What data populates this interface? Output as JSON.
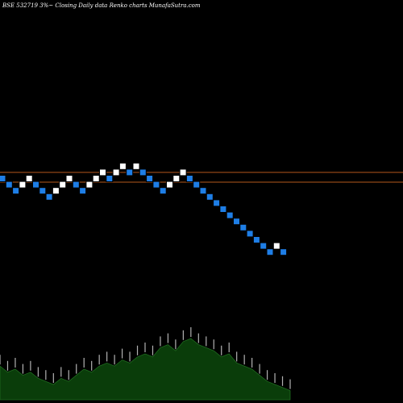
{
  "chart_data": {
    "type": "renko",
    "caption": "BSE 532719 3%~  Closing Daily data  Renko  charts MunafaSutra.com",
    "lines": [
      {
        "color": "#b5571c",
        "y": 1.0
      },
      {
        "color": "#b5571c",
        "y": -0.6
      }
    ],
    "bricks": [
      {
        "x": 0,
        "y": 0,
        "dir": "down"
      },
      {
        "x": 1,
        "y": -1,
        "dir": "down"
      },
      {
        "x": 2,
        "y": -2,
        "dir": "down"
      },
      {
        "x": 3,
        "y": -1,
        "dir": "up"
      },
      {
        "x": 4,
        "y": 0,
        "dir": "up"
      },
      {
        "x": 5,
        "y": -1,
        "dir": "down"
      },
      {
        "x": 6,
        "y": -2,
        "dir": "down"
      },
      {
        "x": 7,
        "y": -3,
        "dir": "down"
      },
      {
        "x": 8,
        "y": -2,
        "dir": "up"
      },
      {
        "x": 9,
        "y": -1,
        "dir": "up"
      },
      {
        "x": 10,
        "y": 0,
        "dir": "up"
      },
      {
        "x": 11,
        "y": -1,
        "dir": "down"
      },
      {
        "x": 12,
        "y": -2,
        "dir": "down"
      },
      {
        "x": 13,
        "y": -1,
        "dir": "up"
      },
      {
        "x": 14,
        "y": 0,
        "dir": "up"
      },
      {
        "x": 15,
        "y": 1,
        "dir": "up"
      },
      {
        "x": 16,
        "y": 0,
        "dir": "down"
      },
      {
        "x": 17,
        "y": 1,
        "dir": "up"
      },
      {
        "x": 18,
        "y": 2,
        "dir": "up"
      },
      {
        "x": 19,
        "y": 1,
        "dir": "down"
      },
      {
        "x": 20,
        "y": 2,
        "dir": "up"
      },
      {
        "x": 21,
        "y": 1,
        "dir": "down"
      },
      {
        "x": 22,
        "y": 0,
        "dir": "down"
      },
      {
        "x": 23,
        "y": -1,
        "dir": "down"
      },
      {
        "x": 24,
        "y": -2,
        "dir": "down"
      },
      {
        "x": 25,
        "y": -1,
        "dir": "up"
      },
      {
        "x": 26,
        "y": 0,
        "dir": "up"
      },
      {
        "x": 27,
        "y": 1,
        "dir": "up"
      },
      {
        "x": 28,
        "y": 0,
        "dir": "down"
      },
      {
        "x": 29,
        "y": -1,
        "dir": "down"
      },
      {
        "x": 30,
        "y": -2,
        "dir": "down"
      },
      {
        "x": 31,
        "y": -3,
        "dir": "down"
      },
      {
        "x": 32,
        "y": -4,
        "dir": "down"
      },
      {
        "x": 33,
        "y": -5,
        "dir": "down"
      },
      {
        "x": 34,
        "y": -6,
        "dir": "down"
      },
      {
        "x": 35,
        "y": -7,
        "dir": "down"
      },
      {
        "x": 36,
        "y": -8,
        "dir": "down"
      },
      {
        "x": 37,
        "y": -9,
        "dir": "down"
      },
      {
        "x": 38,
        "y": -10,
        "dir": "down"
      },
      {
        "x": 39,
        "y": -11,
        "dir": "down"
      },
      {
        "x": 40,
        "y": -12,
        "dir": "down"
      },
      {
        "x": 41,
        "y": -11,
        "dir": "up"
      },
      {
        "x": 42,
        "y": -12,
        "dir": "down"
      }
    ],
    "volume_profile": [
      0.55,
      0.45,
      0.5,
      0.4,
      0.45,
      0.35,
      0.3,
      0.25,
      0.35,
      0.3,
      0.4,
      0.5,
      0.45,
      0.55,
      0.6,
      0.55,
      0.65,
      0.6,
      0.7,
      0.75,
      0.7,
      0.85,
      0.9,
      0.8,
      0.95,
      1.0,
      0.9,
      0.85,
      0.8,
      0.7,
      0.75,
      0.6,
      0.55,
      0.5,
      0.4,
      0.3,
      0.25,
      0.2,
      0.15
    ],
    "volume_labels_present": true
  },
  "colors": {
    "background": "#000000",
    "up_brick": "#ffffff",
    "down_brick": "#1e7ee6",
    "brick_border": "#000000",
    "volume_fill": "#0a3d0a",
    "volume_line": "#1f6b1f",
    "text": "#ffffff"
  }
}
